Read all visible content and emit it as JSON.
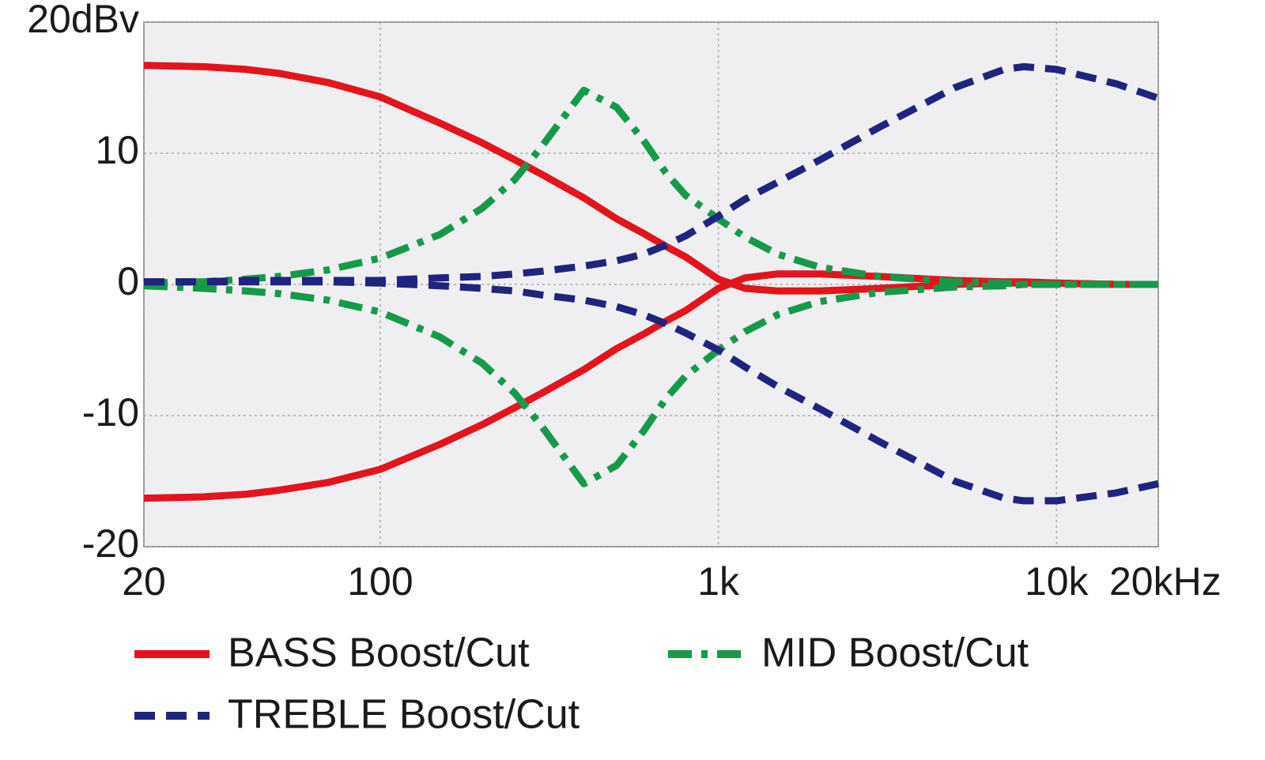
{
  "chart_data": {
    "type": "line",
    "xscale": "log",
    "x": [
      20,
      30,
      40,
      50,
      70,
      100,
      150,
      200,
      250,
      300,
      400,
      500,
      600,
      700,
      800,
      1000,
      1200,
      1500,
      2000,
      3000,
      5000,
      7000,
      8000,
      10000,
      15000,
      20000
    ],
    "xlim": [
      20,
      20000
    ],
    "xticks": [
      20,
      100,
      {
        "value": 1000,
        "label": "1k"
      },
      {
        "value": 10000,
        "label": "10k"
      },
      {
        "value": 20000,
        "label": "20kHz"
      }
    ],
    "ylim": [
      -20,
      20
    ],
    "yticks": [
      -20,
      -10,
      0,
      10,
      {
        "value": 20,
        "label": "20dBv"
      }
    ],
    "grid": true,
    "series": [
      {
        "name": "BASS Boost/Cut",
        "color": "#e3141d",
        "dash": "solid",
        "curves": [
          [
            16.7,
            16.6,
            16.4,
            16.1,
            15.4,
            14.3,
            12.3,
            10.8,
            9.5,
            8.4,
            6.6,
            5.0,
            3.9,
            2.9,
            2.1,
            0.4,
            -0.3,
            -0.5,
            -0.5,
            -0.3,
            0,
            0.1,
            0.1,
            0.1,
            0,
            0
          ],
          [
            -16.3,
            -16.2,
            -16.0,
            -15.7,
            -15.1,
            -14.1,
            -12.2,
            -10.7,
            -9.4,
            -8.3,
            -6.5,
            -4.9,
            -3.8,
            -2.8,
            -2.0,
            -0.3,
            0.5,
            0.8,
            0.8,
            0.6,
            0.3,
            0.2,
            0.2,
            0.1,
            0,
            0
          ]
        ]
      },
      {
        "name": "MID Boost/Cut",
        "color": "#17994a",
        "dash": "dashdot",
        "curves": [
          [
            0.1,
            0.2,
            0.4,
            0.6,
            1.1,
            2.0,
            3.8,
            5.8,
            8.0,
            10.5,
            14.8,
            13.5,
            11.0,
            8.5,
            6.8,
            5.0,
            3.6,
            2.3,
            1.3,
            0.6,
            0.2,
            0.1,
            0,
            0,
            0,
            0
          ],
          [
            -0.1,
            -0.3,
            -0.5,
            -0.7,
            -1.2,
            -2.1,
            -4.0,
            -6.0,
            -8.3,
            -10.8,
            -15.2,
            -13.8,
            -11.2,
            -8.7,
            -7.0,
            -5.0,
            -3.6,
            -2.3,
            -1.3,
            -0.6,
            -0.2,
            -0.1,
            0,
            0,
            0,
            0
          ]
        ]
      },
      {
        "name": "TREBLE Boost/Cut",
        "color": "#1f247e",
        "dash": "dashed",
        "curves": [
          [
            0.2,
            0.2,
            0.3,
            0.3,
            0.3,
            0.3,
            0.5,
            0.6,
            0.8,
            1.0,
            1.4,
            1.8,
            2.3,
            3.0,
            3.7,
            5.2,
            6.5,
            7.8,
            9.5,
            12.0,
            15.0,
            16.4,
            16.6,
            16.4,
            15.3,
            14.2
          ],
          [
            0.2,
            0.2,
            0.2,
            0.2,
            0.2,
            0.1,
            -0.1,
            -0.3,
            -0.5,
            -0.8,
            -1.2,
            -1.7,
            -2.3,
            -3.0,
            -3.7,
            -5.0,
            -6.3,
            -7.8,
            -9.5,
            -12.0,
            -15.0,
            -16.3,
            -16.5,
            -16.5,
            -15.9,
            -15.2
          ]
        ]
      }
    ]
  }
}
